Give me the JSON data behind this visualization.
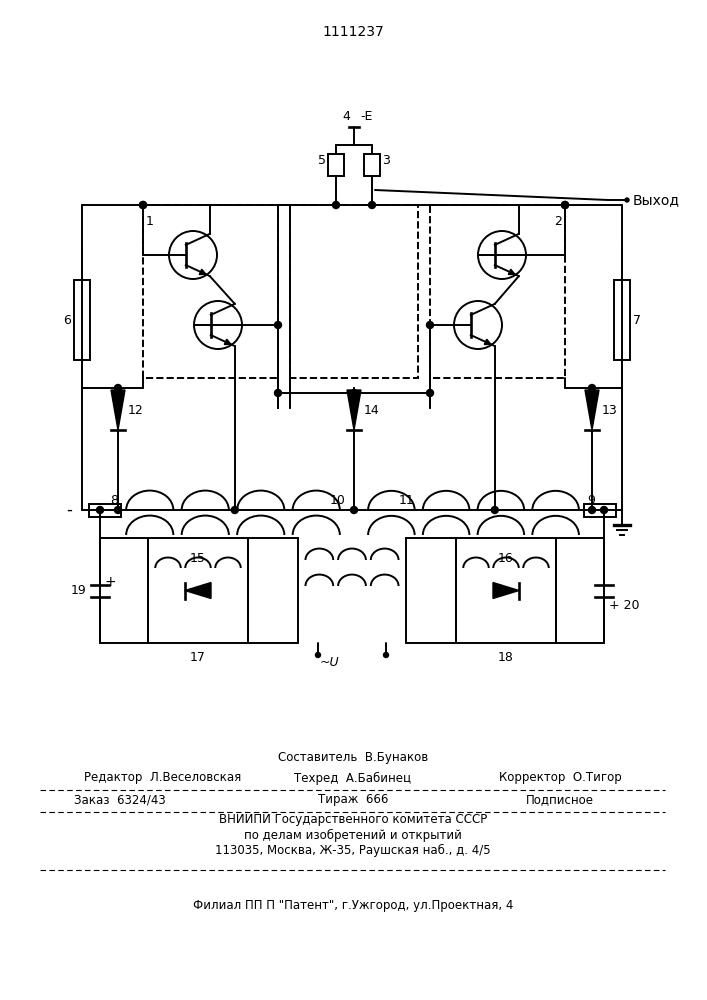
{
  "bg": "#ffffff",
  "lc": "#000000",
  "patent": "1111237",
  "lw": 1.4,
  "footer": {
    "f1": "Составитель  В.Бунаков",
    "f2l": "Редактор  Л.Веселовская",
    "f2m": "Техред  А.Бабинец",
    "f2r": "Корректор  О.Тигор",
    "f3l": "Заказ  6324/43",
    "f3m": "Тираж  666",
    "f3r": "Подписное",
    "f4": "ВНИИПИ Государственного комитета СССР",
    "f5": "по делам изобретений и открытий",
    "f6": "113035, Москва, Ж-35, Раушская наб., д. 4/5",
    "f7": "Филиал ПП П \"Патент\", г.Ужгород, ул.Проектная, 4"
  }
}
